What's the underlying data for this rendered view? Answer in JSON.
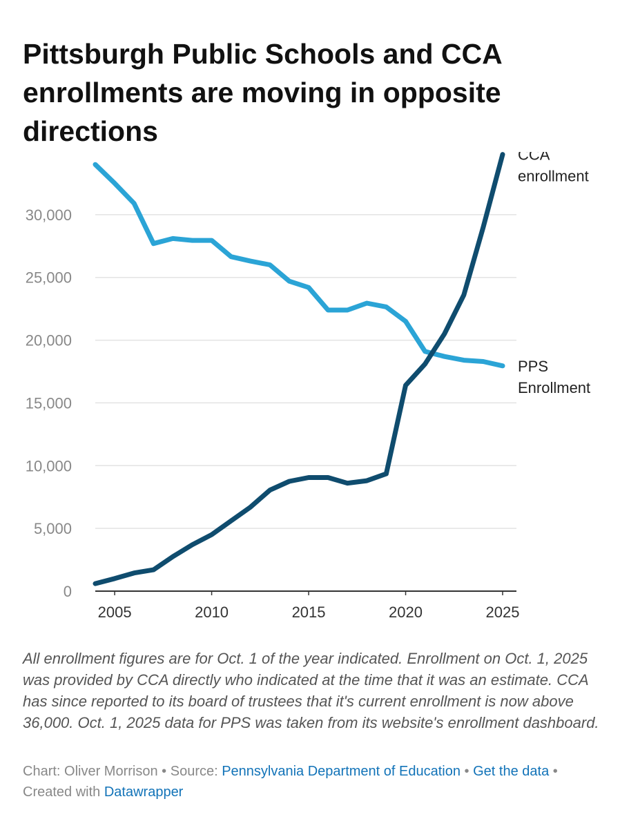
{
  "title": "Pittsburgh Public Schools and CCA enrollments are moving in opposite directions",
  "notes": "All enrollment figures are for Oct. 1 of the year indicated. Enrollment on Oct. 1, 2025 was provided by CCA directly who indicated at the time that it was an estimate. CCA has since reported to its board of trustees that it's current enrollment is now above 36,000. Oct. 1, 2025 data for PPS was taken from its website's enrollment dashboard.",
  "credits": {
    "chart_prefix": "Chart: Oliver Morrison",
    "separator": " • ",
    "source_prefix": "Source: ",
    "source_link": "Pennsylvania Department of Education",
    "get_data_link": "Get the data",
    "created_prefix": "Created with ",
    "created_link": "Datawrapper"
  },
  "chart_data": {
    "type": "line",
    "x": [
      2004,
      2005,
      2006,
      2007,
      2008,
      2009,
      2010,
      2011,
      2012,
      2013,
      2014,
      2015,
      2016,
      2017,
      2018,
      2019,
      2020,
      2021,
      2022,
      2023,
      2024,
      2025
    ],
    "series": [
      {
        "name": "PPS Enrollment",
        "label_lines": [
          "PPS",
          "Enrollment"
        ],
        "color": "#2ba4d6",
        "values": [
          34000,
          32500,
          30900,
          27700,
          28100,
          27950,
          27950,
          26650,
          26300,
          26000,
          24700,
          24200,
          22400,
          22400,
          22950,
          22650,
          21500,
          19100,
          18700,
          18400,
          18300,
          17950
        ]
      },
      {
        "name": "CCA enrollment",
        "label_lines": [
          "CCA",
          "enrollment"
        ],
        "color": "#0f4c6e",
        "values": [
          600,
          1000,
          1450,
          1700,
          2750,
          3700,
          4500,
          5600,
          6700,
          8050,
          8750,
          9050,
          9050,
          8600,
          8800,
          9350,
          16400,
          18100,
          20500,
          23600,
          29000,
          34800
        ]
      }
    ],
    "ylim": [
      0,
      35000
    ],
    "xlim": [
      2004,
      2025
    ],
    "y_ticks": [
      0,
      5000,
      10000,
      15000,
      20000,
      25000,
      30000
    ],
    "y_tick_labels": [
      "0",
      "5,000",
      "10,000",
      "15,000",
      "20,000",
      "25,000",
      "30,000"
    ],
    "x_ticks": [
      2005,
      2010,
      2015,
      2020,
      2025
    ],
    "x_tick_labels": [
      "2005",
      "2010",
      "2015",
      "2020",
      "2025"
    ],
    "grid": true,
    "title": "Pittsburgh Public Schools and CCA enrollments are moving in opposite directions",
    "xlabel": "",
    "ylabel": ""
  }
}
